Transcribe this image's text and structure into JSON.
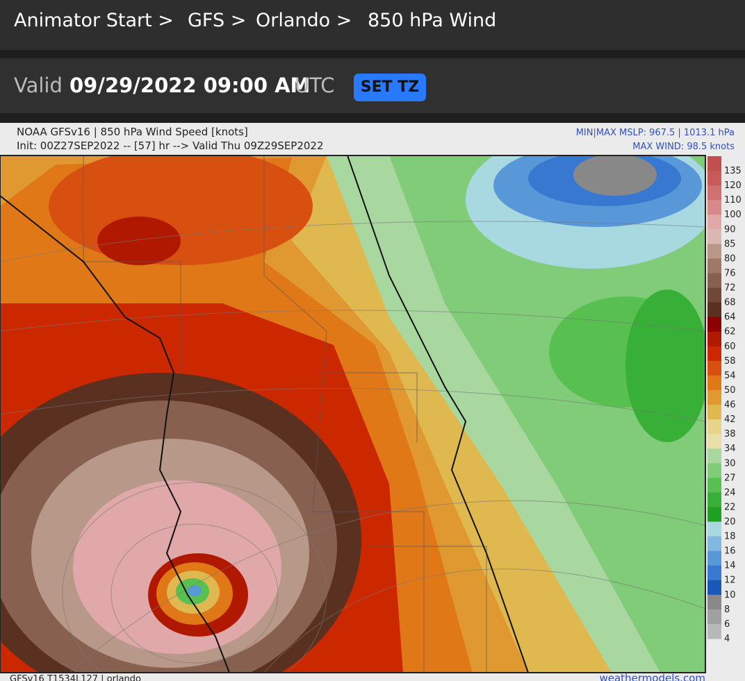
{
  "breadcrumb": [
    "Animator Start >",
    "GFS >",
    "Orlando >",
    "850 hPa Wind"
  ],
  "valid": {
    "label": "Valid",
    "datetime": "09/29/2022 09:00 AM",
    "tz": "UTC",
    "button": "SET TZ"
  },
  "map": {
    "title": "NOAA GFSv16 | 850 hPa Wind Speed [knots]",
    "init": "Init: 00Z27SEP2022 -- [57] hr --> Valid Thu 09Z29SEP2022",
    "mslp": "MIN|MAX MSLP: 967.5 | 1013.1 hPa",
    "max_wind": "MAX WIND: 98.5 knots",
    "footer_left": "GFSv16 T1534L127 | orlando",
    "footer_right": "weathermodels.com",
    "colorbar": [
      {
        "label": "135",
        "color": "#c0504d"
      },
      {
        "label": "120",
        "color": "#c85a5a"
      },
      {
        "label": "110",
        "color": "#d07070"
      },
      {
        "label": "100",
        "color": "#d88a8a"
      },
      {
        "label": "90",
        "color": "#e0a8a8"
      },
      {
        "label": "85",
        "color": "#d8b8b0"
      },
      {
        "label": "80",
        "color": "#b89888"
      },
      {
        "label": "76",
        "color": "#a07868"
      },
      {
        "label": "72",
        "color": "#886050"
      },
      {
        "label": "68",
        "color": "#704838"
      },
      {
        "label": "64",
        "color": "#5a3020"
      },
      {
        "label": "62",
        "color": "#8b0000"
      },
      {
        "label": "60",
        "color": "#b01800"
      },
      {
        "label": "58",
        "color": "#cc2800"
      },
      {
        "label": "54",
        "color": "#d85010"
      },
      {
        "label": "50",
        "color": "#e07818"
      },
      {
        "label": "46",
        "color": "#e09830"
      },
      {
        "label": "42",
        "color": "#e0b850"
      },
      {
        "label": "38",
        "color": "#e8d488"
      },
      {
        "label": "34",
        "color": "#e8e0a8"
      },
      {
        "label": "30",
        "color": "#a8d8a0"
      },
      {
        "label": "27",
        "color": "#80cc78"
      },
      {
        "label": "24",
        "color": "#58c050"
      },
      {
        "label": "22",
        "color": "#38b038"
      },
      {
        "label": "20",
        "color": "#20a020"
      },
      {
        "label": "18",
        "color": "#a8d8e0"
      },
      {
        "label": "16",
        "color": "#80b8e0"
      },
      {
        "label": "14",
        "color": "#5898d8"
      },
      {
        "label": "12",
        "color": "#3878d0"
      },
      {
        "label": "10",
        "color": "#1858b8"
      },
      {
        "label": "8",
        "color": "#888888"
      },
      {
        "label": "6",
        "color": "#a0a0a0"
      },
      {
        "label": "4",
        "color": "#b8b8b8"
      }
    ]
  }
}
